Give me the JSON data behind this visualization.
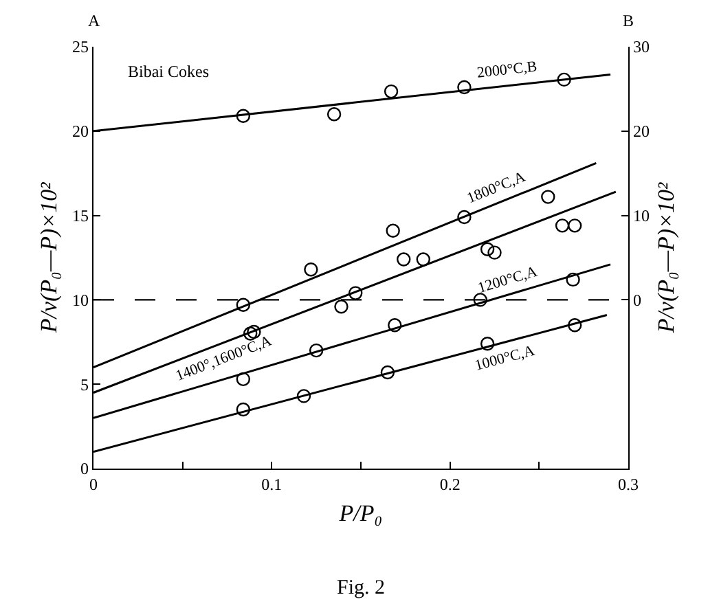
{
  "chart_data": {
    "type": "scatter",
    "xlabel": "P/P₀",
    "ylabel": "P/v(P₀—P)×10²",
    "y2label": "P/v(P₀—P)×10²",
    "annotations": [
      "Bibai Cokes",
      "A",
      "B",
      "Fig. 2"
    ],
    "xlim": [
      0,
      0.3
    ],
    "xticks": [
      0,
      {
        "value": 0.05,
        "label": null
      },
      0.1,
      {
        "value": 0.15,
        "label": null
      },
      0.2,
      {
        "value": 0.25,
        "label": null
      },
      0.3
    ],
    "ylim": [
      0,
      25
    ],
    "yticks": [
      0,
      5,
      10,
      15,
      20,
      25
    ],
    "y2lim": [
      -20,
      30
    ],
    "y2ticks": [
      0,
      10,
      20,
      30
    ],
    "legend": false,
    "marker": "circle",
    "ref_lines": [
      {
        "axis": "y2",
        "value": 0,
        "label": null,
        "color": "#000000",
        "line_style": "dashed"
      }
    ],
    "series": [
      {
        "axis": "y2",
        "color": "#000000",
        "x": [
          0.084,
          0.135,
          0.167,
          0.208,
          0.264
        ],
        "values": [
          21.8,
          22.0,
          24.7,
          25.2,
          26.1
        ]
      },
      {
        "type": "line",
        "axis": "y2",
        "name": "2000°C,B",
        "marker": "none",
        "color": "#000000",
        "x": [
          0,
          0.29
        ],
        "values": [
          20,
          26.7
        ]
      },
      {
        "color": "#000000",
        "x": [
          0.084,
          0.122,
          0.168,
          0.208,
          0.255
        ],
        "values": [
          9.7,
          11.8,
          14.1,
          14.9,
          16.1
        ]
      },
      {
        "type": "line",
        "name": "1800°C,A",
        "marker": "none",
        "color": "#000000",
        "x": [
          0,
          0.282
        ],
        "values": [
          6.0,
          18.1
        ]
      },
      {
        "color": "#000000",
        "x": [
          0.088,
          0.09,
          0.139,
          0.147,
          0.174,
          0.185,
          0.221,
          0.225,
          0.263,
          0.27
        ],
        "values": [
          8.0,
          8.1,
          9.6,
          10.4,
          12.4,
          12.4,
          13.0,
          12.8,
          14.4,
          14.4
        ]
      },
      {
        "type": "line",
        "name": "1400°,1600°C,A",
        "marker": "none",
        "color": "#000000",
        "x": [
          0,
          0.293
        ],
        "values": [
          4.5,
          16.4
        ]
      },
      {
        "color": "#000000",
        "x": [
          0.084,
          0.125,
          0.169,
          0.217,
          0.269
        ],
        "values": [
          5.3,
          7.0,
          8.5,
          10.0,
          11.2
        ]
      },
      {
        "type": "line",
        "name": "1200°C,A",
        "marker": "none",
        "color": "#000000",
        "x": [
          0,
          0.29
        ],
        "values": [
          3.0,
          12.1
        ]
      },
      {
        "color": "#000000",
        "x": [
          0.084,
          0.118,
          0.165,
          0.221,
          0.27
        ],
        "values": [
          3.5,
          4.3,
          5.7,
          7.4,
          8.5
        ]
      },
      {
        "type": "line",
        "name": "1000°C,A",
        "marker": "none",
        "color": "#000000",
        "x": [
          0,
          0.288
        ],
        "values": [
          1.0,
          9.1
        ]
      }
    ]
  }
}
